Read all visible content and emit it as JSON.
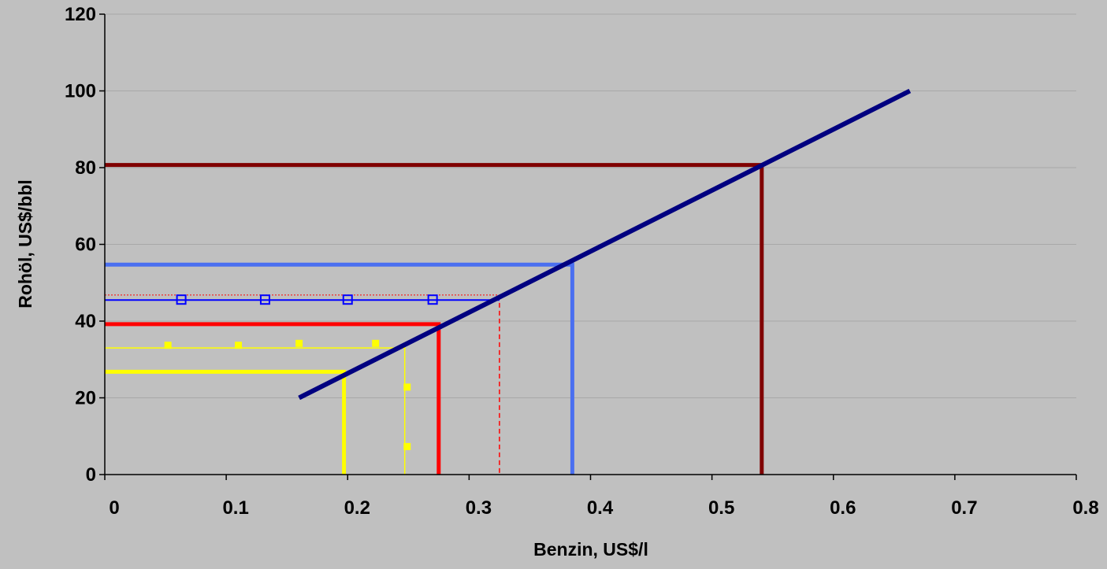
{
  "chart_data": {
    "type": "line",
    "title": "",
    "xlabel": "Benzin, US$/l",
    "ylabel": "Rohöl, US$/bbl",
    "xlim": [
      0,
      0.8
    ],
    "ylim": [
      0,
      120
    ],
    "x_ticks": [
      0,
      0.1,
      0.2,
      0.3,
      0.4,
      0.5,
      0.6,
      0.7,
      0.8
    ],
    "x_tick_labels": [
      "0",
      "0.1",
      "0.2",
      "0.3",
      "0.4",
      "0.5",
      "0.6",
      "0.7",
      "0.8"
    ],
    "y_ticks": [
      0,
      20,
      40,
      60,
      80,
      100,
      120
    ],
    "y_tick_labels": [
      "0",
      "20",
      "40",
      "60",
      "80",
      "100",
      "120"
    ],
    "grid": "horizontal",
    "legend": "none",
    "colors": {
      "background": "#c0c0c0",
      "plot_area": "#c0c0c0",
      "gridline": "#a8a8a8",
      "axis": "#000000"
    },
    "series": [
      {
        "color": "#ffff00",
        "width": 5,
        "points": [
          [
            0,
            26.8
          ],
          [
            0.197,
            26.8
          ],
          [
            0.197,
            0
          ]
        ]
      },
      {
        "color": "#ff0000",
        "width": 5,
        "points": [
          [
            0,
            39.2
          ],
          [
            0.275,
            39.2
          ],
          [
            0.275,
            0
          ]
        ]
      },
      {
        "color": "#4a6ff0",
        "width": 5,
        "points": [
          [
            0,
            54.7
          ],
          [
            0.385,
            54.7
          ],
          [
            0.385,
            0
          ]
        ]
      },
      {
        "color": "#800000",
        "width": 5,
        "points": [
          [
            0,
            80.7
          ],
          [
            0.541,
            80.7
          ],
          [
            0.541,
            0
          ]
        ]
      },
      {
        "color": "#ffff00",
        "width": 1.5,
        "points": [
          [
            0,
            33
          ],
          [
            0.247,
            33
          ],
          [
            0.247,
            0
          ]
        ]
      },
      {
        "color": "#0000ff",
        "width": 2,
        "points": [
          [
            0,
            45.5
          ],
          [
            0.325,
            45.5
          ]
        ]
      },
      {
        "color": "#ff0000",
        "width": 1.5,
        "dash": "6,4",
        "points": [
          [
            0.325,
            46.8
          ],
          [
            0.325,
            0
          ]
        ]
      },
      {
        "color": "#ff0000",
        "width": 1,
        "dash": "2,2",
        "points": [
          [
            0,
            46.8
          ],
          [
            0.325,
            46.8
          ]
        ]
      },
      {
        "color": "#000080",
        "width": 6,
        "points": [
          [
            0.16,
            20
          ],
          [
            0.663,
            100
          ]
        ]
      }
    ],
    "marker_series": [
      {
        "color": "#0000ff",
        "marker": "hollow-square",
        "points": [
          [
            0.063,
            45.6
          ],
          [
            0.132,
            45.6
          ],
          [
            0.2,
            45.6
          ],
          [
            0.27,
            45.6
          ]
        ]
      },
      {
        "color": "#ffff00",
        "marker": "filled-square",
        "points": [
          [
            0.052,
            33.7
          ],
          [
            0.11,
            33.7
          ],
          [
            0.16,
            34.2
          ],
          [
            0.223,
            34.2
          ],
          [
            0.249,
            22.8
          ],
          [
            0.249,
            7.3
          ]
        ]
      }
    ]
  }
}
